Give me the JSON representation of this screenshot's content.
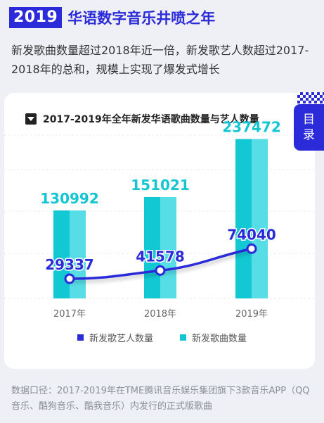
{
  "header": {
    "year": "2019",
    "title": "华语数字音乐井喷之年"
  },
  "subtitle": "新发歌曲数量超过2018年近一倍，新发歌艺人数超过2017-2018年的总和，规模上实现了爆发式增长",
  "toc": {
    "label": "目录"
  },
  "colors": {
    "accent": "#2c2bd9",
    "bar_light": "#57dde6",
    "bar_dark": "#11c8d3",
    "bar_label": "#13c6d3"
  },
  "chart_data": {
    "type": "bar",
    "title": "2017-2019年全年新发华语歌曲数量与艺人数量",
    "categories": [
      "2017年",
      "2018年",
      "2019年"
    ],
    "series": [
      {
        "name": "新发歌艺人数量",
        "type": "line",
        "values": [
          29337,
          41578,
          74040
        ]
      },
      {
        "name": "新发歌曲数量",
        "type": "bar",
        "values": [
          130992,
          151021,
          237472
        ]
      }
    ],
    "ylim": [
      0,
      260000
    ],
    "grid": true,
    "legend": "bottom"
  },
  "footnote": "数据口径：2017-2019年在TME腾讯音乐娱乐集团旗下3款音乐APP（QQ音乐、酷狗音乐、酷我音乐）内发行的正式版歌曲"
}
